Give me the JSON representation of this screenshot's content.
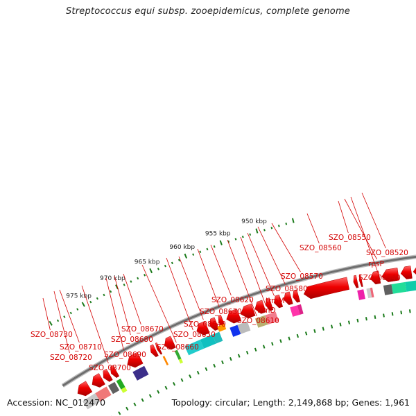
{
  "title": "Streptococcus equi subsp. zooepidemicus, complete genome",
  "footer": {
    "accession": "Accession: NC_012470",
    "topology": "Topology: circular; Length: 2,149,868 bp; Genes: 1,961"
  },
  "scale": {
    "ticks": [
      {
        "kbp": 950,
        "label": "950 kbp"
      },
      {
        "kbp": 955,
        "label": "955 kbp"
      },
      {
        "kbp": 960,
        "label": "960 kbp"
      },
      {
        "kbp": 965,
        "label": "965 kbp"
      },
      {
        "kbp": 970,
        "label": "970 kbp"
      },
      {
        "kbp": 975,
        "label": "975 kbp"
      }
    ]
  },
  "colors": {
    "gene_arrow": "#ee0000",
    "backbone": "#7a7a7a",
    "label": "#d40000",
    "tick": "#1a7a1a"
  },
  "gene_labels": [
    {
      "id": "SZO_08520",
      "label": "SZO_08520"
    },
    {
      "id": "SZO_08540",
      "label": "SZO_08540"
    },
    {
      "id": "rpsP",
      "label": "rpsP"
    },
    {
      "id": "SZO_08550",
      "label": "SZO_08550"
    },
    {
      "id": "SZO_08560",
      "label": "SZO_08560"
    },
    {
      "id": "SZO_08570",
      "label": "SZO_08570"
    },
    {
      "id": "SZO_08580",
      "label": "SZO_08580"
    },
    {
      "id": "trmM",
      "label": "trmM"
    },
    {
      "id": "trmD",
      "label": "trmD"
    },
    {
      "id": "SZO_08610",
      "label": "SZO_08610"
    },
    {
      "id": "SZO_08620",
      "label": "SZO_08620"
    },
    {
      "id": "SZO_08630",
      "label": "SZO_08630"
    },
    {
      "id": "SZO_08640",
      "label": "SZO_08640"
    },
    {
      "id": "SZO_08650",
      "label": "SZO_08650"
    },
    {
      "id": "SZO_08660",
      "label": "SZO_08660"
    },
    {
      "id": "SZO_08670",
      "label": "SZO_08670"
    },
    {
      "id": "SZO_08680",
      "label": "SZO_08680"
    },
    {
      "id": "SZO_08690",
      "label": "SZO_08690"
    },
    {
      "id": "SZO_08700",
      "label": "SZO_08700"
    },
    {
      "id": "SZO_08710",
      "label": "SZO_08710"
    },
    {
      "id": "SZO_08720",
      "label": "SZO_08720"
    },
    {
      "id": "SZO_08730",
      "label": "SZO_08730"
    }
  ]
}
